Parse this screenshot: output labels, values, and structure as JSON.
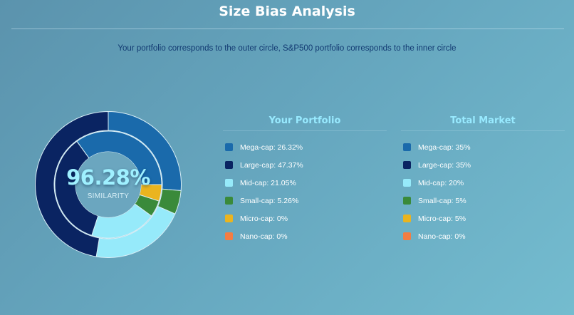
{
  "header": {
    "title": "Size Bias Analysis",
    "subtitle": "Your portfolio corresponds to the outer circle, S&P500 portfolio corresponds to the inner circle"
  },
  "center": {
    "value": "96.28%",
    "label": "SIMILARITY"
  },
  "colors": {
    "mega": "#1a6aab",
    "large": "#0a2462",
    "mid": "#96eafa",
    "small": "#3a8a3a",
    "micro": "#eab41f",
    "nano": "#f47d43"
  },
  "legends": {
    "portfolio": {
      "title": "Your Portfolio",
      "items": [
        {
          "label": "Mega-cap: 26.32%",
          "color": "#1a6aab"
        },
        {
          "label": "Large-cap: 47.37%",
          "color": "#0a2462"
        },
        {
          "label": "Mid-cap: 21.05%",
          "color": "#96eafa"
        },
        {
          "label": "Small-cap: 5.26%",
          "color": "#3a8a3a"
        },
        {
          "label": "Micro-cap: 0%",
          "color": "#eab41f"
        },
        {
          "label": "Nano-cap: 0%",
          "color": "#f47d43"
        }
      ]
    },
    "market": {
      "title": "Total Market",
      "items": [
        {
          "label": "Mega-cap: 35%",
          "color": "#1a6aab"
        },
        {
          "label": "Large-cap: 35%",
          "color": "#0a2462"
        },
        {
          "label": "Mid-cap: 20%",
          "color": "#96eafa"
        },
        {
          "label": "Small-cap: 5%",
          "color": "#3a8a3a"
        },
        {
          "label": "Micro-cap: 5%",
          "color": "#eab41f"
        },
        {
          "label": "Nano-cap: 0%",
          "color": "#f47d43"
        }
      ]
    }
  },
  "chart_data": {
    "type": "pie",
    "title": "Size Bias Analysis",
    "subtype": "nested-donut",
    "categories": [
      "Mega-cap",
      "Large-cap",
      "Mid-cap",
      "Small-cap",
      "Micro-cap",
      "Nano-cap"
    ],
    "series": [
      {
        "name": "Your Portfolio",
        "ring": "outer",
        "values": [
          26.32,
          47.37,
          21.05,
          5.26,
          0,
          0
        ]
      },
      {
        "name": "Total Market",
        "ring": "inner",
        "values": [
          35,
          35,
          20,
          5,
          5,
          0
        ]
      }
    ],
    "center_annotation": "96.28% SIMILARITY",
    "legend_position": "right"
  }
}
